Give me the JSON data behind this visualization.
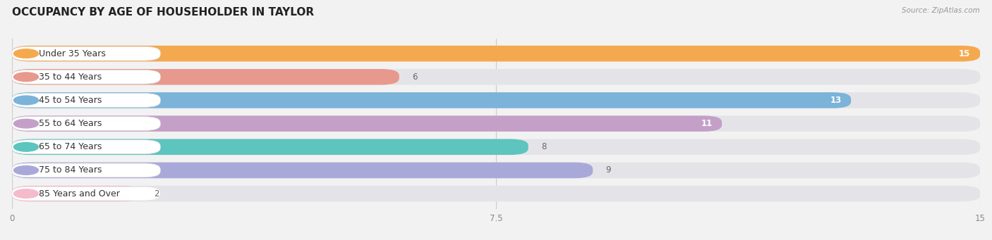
{
  "title": "OCCUPANCY BY AGE OF HOUSEHOLDER IN TAYLOR",
  "source": "Source: ZipAtlas.com",
  "categories": [
    "Under 35 Years",
    "35 to 44 Years",
    "45 to 54 Years",
    "55 to 64 Years",
    "65 to 74 Years",
    "75 to 84 Years",
    "85 Years and Over"
  ],
  "values": [
    15,
    6,
    13,
    11,
    8,
    9,
    2
  ],
  "bar_colors": [
    "#F5A94E",
    "#E8998D",
    "#7BB3D9",
    "#C4A0C8",
    "#5DC4BE",
    "#A9A9D9",
    "#F5BBCC"
  ],
  "xlim": [
    0,
    15
  ],
  "xticks": [
    0,
    7.5,
    15
  ],
  "background_color": "#f2f2f2",
  "bar_bg_color": "#e4e4e8",
  "title_fontsize": 11,
  "label_fontsize": 9,
  "value_fontsize": 8.5
}
